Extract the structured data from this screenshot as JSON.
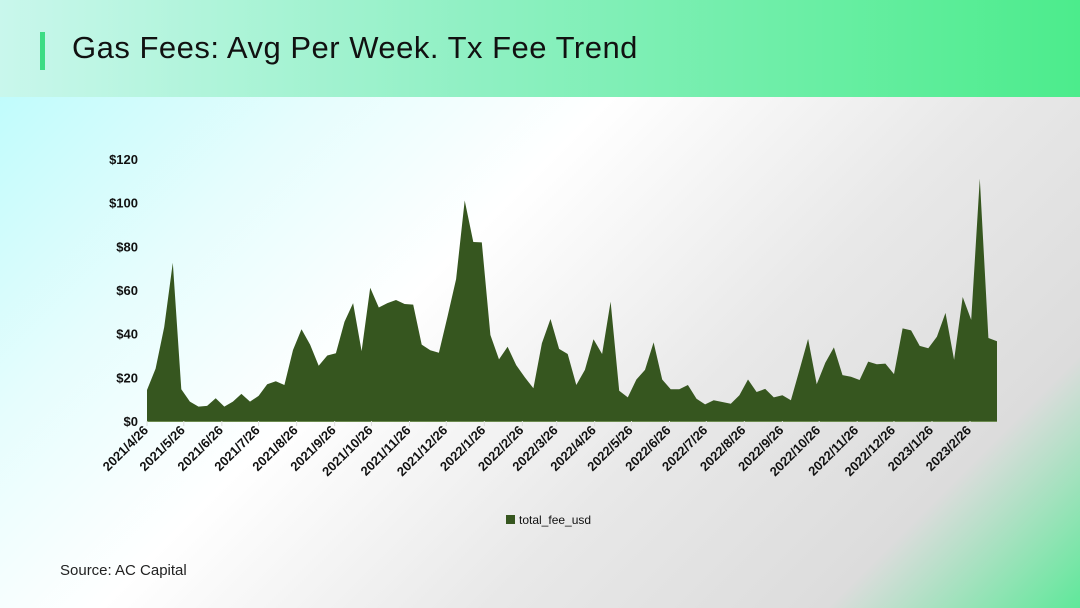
{
  "title": "Gas Fees: Avg Per Week. Tx Fee Trend",
  "source": "Source:  AC Capital",
  "colors": {
    "area": "#36561f",
    "accent": "#3ddc84"
  },
  "chart_data": {
    "type": "area",
    "xlabel": "",
    "ylabel": "",
    "ylim": [
      0,
      120
    ],
    "y_ticks": [
      "$0",
      "$20",
      "$40",
      "$60",
      "$80",
      "$100",
      "$120"
    ],
    "y_tick_values": [
      0,
      20,
      40,
      60,
      80,
      100,
      120
    ],
    "x_ticks": [
      "2021/4/26",
      "2021/5/26",
      "2021/6/26",
      "2021/7/26",
      "2021/8/26",
      "2021/9/26",
      "2021/10/26",
      "2021/11/26",
      "2021/12/26",
      "2022/1/26",
      "2022/2/26",
      "2022/3/26",
      "2022/4/26",
      "2022/5/26",
      "2022/6/26",
      "2022/7/26",
      "2022/8/26",
      "2022/9/26",
      "2022/10/26",
      "2022/11/26",
      "2022/12/26",
      "2023/1/26",
      "2023/2/26"
    ],
    "grid": false,
    "legend": "bottom",
    "series": [
      {
        "name": "total_fee_usd",
        "x": [
          "2021/4/26",
          "2021/5/3",
          "2021/5/10",
          "2021/5/17",
          "2021/5/24",
          "2021/5/31",
          "2021/6/7",
          "2021/6/14",
          "2021/6/21",
          "2021/6/28",
          "2021/7/5",
          "2021/7/12",
          "2021/7/19",
          "2021/7/26",
          "2021/8/2",
          "2021/8/9",
          "2021/8/16",
          "2021/8/23",
          "2021/8/30",
          "2021/9/6",
          "2021/9/13",
          "2021/9/20",
          "2021/9/27",
          "2021/10/4",
          "2021/10/11",
          "2021/10/18",
          "2021/10/25",
          "2021/11/1",
          "2021/11/8",
          "2021/11/15",
          "2021/11/22",
          "2021/11/29",
          "2021/12/6",
          "2021/12/13",
          "2021/12/20",
          "2021/12/27",
          "2022/1/3",
          "2022/1/10",
          "2022/1/17",
          "2022/1/24",
          "2022/1/31",
          "2022/2/7",
          "2022/2/14",
          "2022/2/21",
          "2022/2/28",
          "2022/3/7",
          "2022/3/14",
          "2022/3/21",
          "2022/3/28",
          "2022/4/4",
          "2022/4/11",
          "2022/4/18",
          "2022/4/25",
          "2022/5/2",
          "2022/5/9",
          "2022/5/16",
          "2022/5/23",
          "2022/5/30",
          "2022/6/6",
          "2022/6/13",
          "2022/6/20",
          "2022/6/27",
          "2022/7/4",
          "2022/7/11",
          "2022/7/18",
          "2022/7/25",
          "2022/8/1",
          "2022/8/8",
          "2022/8/15",
          "2022/8/22",
          "2022/8/29",
          "2022/9/5",
          "2022/9/12",
          "2022/9/19",
          "2022/9/26",
          "2022/10/3",
          "2022/10/10",
          "2022/10/17",
          "2022/10/24",
          "2022/10/31",
          "2022/11/7",
          "2022/11/14",
          "2022/11/21",
          "2022/11/28",
          "2022/12/5",
          "2022/12/12",
          "2022/12/19",
          "2022/12/26",
          "2023/1/2",
          "2023/1/9",
          "2023/1/16",
          "2023/1/23",
          "2023/1/30",
          "2023/2/6",
          "2023/2/13",
          "2023/2/20",
          "2023/2/27",
          "2023/3/6",
          "2023/3/13",
          "2023/3/20"
        ],
        "values": [
          14.2,
          24,
          43,
          72.5,
          14.5,
          8.9,
          6.6,
          6.9,
          10.4,
          6.6,
          8.9,
          12.4,
          8.9,
          11.5,
          16.8,
          18.2,
          16.5,
          32.5,
          42,
          35,
          25.3,
          30,
          31,
          45.5,
          54,
          32,
          61,
          52,
          54,
          55.4,
          53.6,
          53.3,
          35,
          32.4,
          31.3,
          47.8,
          65,
          101,
          82,
          81.8,
          39.4,
          28.2,
          34,
          25.6,
          20,
          15,
          35.6,
          46.7,
          33,
          30.7,
          16.5,
          23.4,
          37.4,
          30.7,
          54.7,
          13.9,
          10.8,
          19,
          23.4,
          36,
          19,
          14.5,
          14.5,
          16.5,
          10.2,
          7.6,
          9.5,
          8.7,
          7.9,
          11.8,
          19,
          13.3,
          14.7,
          10.8,
          11.8,
          9.5,
          23.4,
          37.6,
          16.8,
          26.7,
          33.7,
          21,
          20.3,
          18.8,
          27.2,
          26,
          26.3,
          21.5,
          42.4,
          41.5,
          34.4,
          33.3,
          38.6,
          49.5,
          28,
          56.8,
          46.3,
          111,
          38,
          36.5
        ]
      }
    ]
  }
}
